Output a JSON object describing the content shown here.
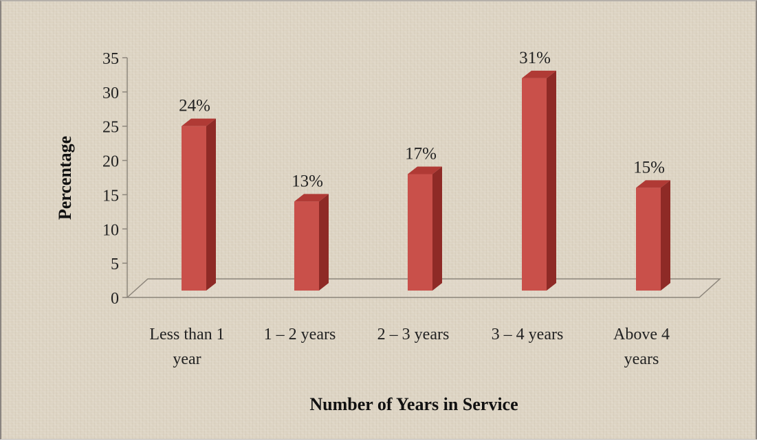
{
  "chart_data": {
    "type": "bar",
    "title": "",
    "xlabel": "Number of Years in Service",
    "ylabel": "Percentage",
    "categories": [
      [
        "Less than 1",
        "year"
      ],
      [
        "1 – 2 years"
      ],
      [
        "2 – 3 years"
      ],
      [
        "3 – 4 years"
      ],
      [
        "Above 4",
        "years"
      ]
    ],
    "values": [
      24,
      13,
      17,
      31,
      15
    ],
    "data_labels": [
      "24%",
      "13%",
      "17%",
      "31%",
      "15%"
    ],
    "ylim": [
      0,
      35
    ],
    "yticks": [
      0,
      5,
      10,
      15,
      20,
      25,
      30,
      35
    ],
    "grid": false,
    "legend": "none",
    "style": "3d-column",
    "colors": {
      "bar_front": "#c9504a",
      "bar_side": "#8e2a26",
      "bar_top": "#b03a35",
      "background": "#ddd4c3"
    }
  }
}
